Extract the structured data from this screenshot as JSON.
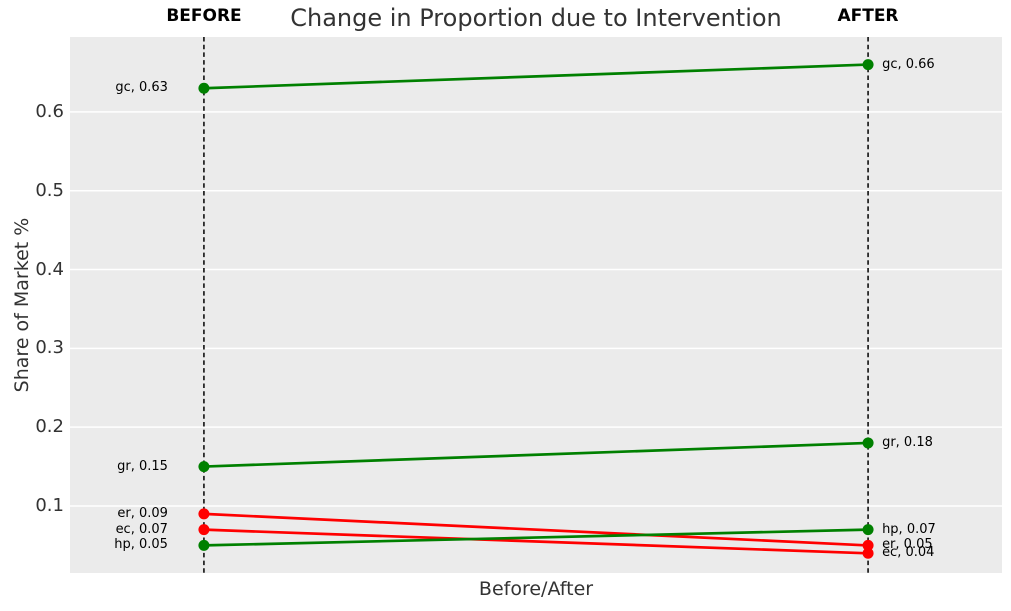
{
  "chart_data": {
    "type": "line",
    "subtype": "slope",
    "title": "Change in Proportion due to Intervention",
    "xlabel": "Before/After",
    "ylabel": "Share of Market %",
    "x_categories": [
      "BEFORE",
      "AFTER"
    ],
    "series": [
      {
        "name": "gc",
        "values": [
          0.63,
          0.66
        ],
        "color": "#008000",
        "trend": "increase",
        "labels": [
          "gc, 0.63",
          "gc, 0.66"
        ]
      },
      {
        "name": "gr",
        "values": [
          0.15,
          0.18
        ],
        "color": "#008000",
        "trend": "increase",
        "labels": [
          "gr, 0.15",
          "gr, 0.18"
        ]
      },
      {
        "name": "er",
        "values": [
          0.09,
          0.05
        ],
        "color": "#ff0000",
        "trend": "decrease",
        "labels": [
          "er, 0.09",
          "er, 0.05"
        ]
      },
      {
        "name": "ec",
        "values": [
          0.07,
          0.04
        ],
        "color": "#ff0000",
        "trend": "decrease",
        "labels": [
          "ec, 0.07",
          "ec, 0.04"
        ]
      },
      {
        "name": "hp",
        "values": [
          0.05,
          0.07
        ],
        "color": "#008000",
        "trend": "increase",
        "labels": [
          "hp, 0.05",
          "hp, 0.07"
        ]
      }
    ],
    "yticks": [
      0.1,
      0.2,
      0.3,
      0.4,
      0.5,
      0.6
    ],
    "ylim": [
      0.015,
      0.695
    ],
    "grid": "horizontal",
    "legend": null,
    "colors": {
      "increase": "#008000",
      "decrease": "#ff0000",
      "plot_background": "#ebebeb",
      "gridline": "#ffffff",
      "guide_line": "#000000",
      "text": "#333333"
    }
  }
}
